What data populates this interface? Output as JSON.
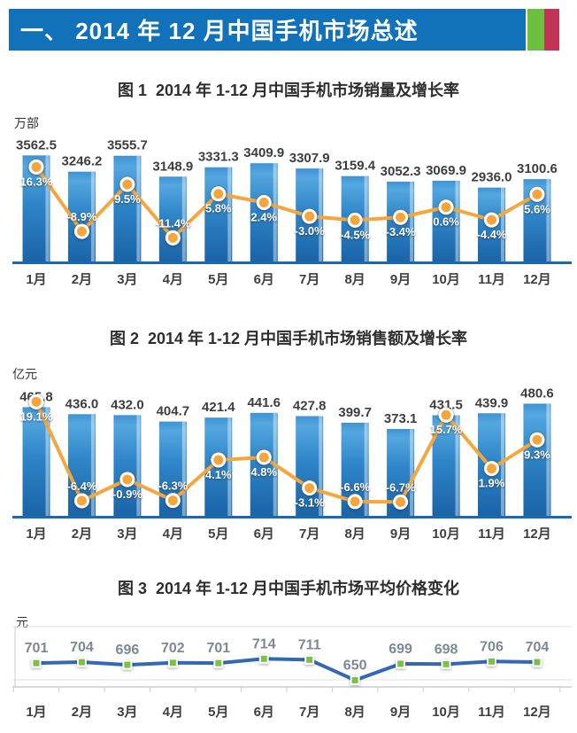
{
  "header": {
    "title": "一、 2014 年 12 月中国手机市场总述",
    "accents": {
      "banner_blue": "#1272B9",
      "green_block": "#6CBF3F",
      "red_block": "#C23457"
    }
  },
  "chart_data": [
    {
      "type": "bar+line",
      "title": "图 1  2014 年 1-12 月中国手机市场销量及增长率",
      "unit_label": "万部",
      "categories": [
        "1月",
        "2月",
        "3月",
        "4月",
        "5月",
        "6月",
        "7月",
        "8月",
        "9月",
        "10月",
        "11月",
        "12月"
      ],
      "bars": {
        "values": [
          3562.5,
          3246.2,
          3555.7,
          3148.9,
          3331.3,
          3409.9,
          3307.9,
          3159.4,
          3052.3,
          3069.9,
          2936.0,
          3100.6
        ]
      },
      "line": {
        "values_pct": [
          16.3,
          -8.9,
          9.5,
          -11.4,
          5.8,
          2.4,
          -3.0,
          -4.5,
          -3.4,
          0.6,
          -4.4,
          5.6
        ]
      },
      "ylim_bars": [
        1480,
        3620
      ],
      "ylim_pct": [
        -21,
        22
      ],
      "colors": {
        "bar_top": "#4BA0DB",
        "bar_bottom": "#1A63A6",
        "line": "#F3A73C",
        "axis": "#1A6AB2"
      },
      "legend": "none",
      "grid": "off"
    },
    {
      "type": "bar+line",
      "title": "图 2  2014 年 1-12 月中国手机市场销售额及增长率",
      "unit_label": "亿元",
      "categories": [
        "1月",
        "2月",
        "3月",
        "4月",
        "5月",
        "6月",
        "7月",
        "8月",
        "9月",
        "10月",
        "11月",
        "12月"
      ],
      "bars": {
        "values": [
          465.8,
          436.0,
          432.0,
          404.7,
          421.4,
          441.6,
          427.8,
          399.7,
          373.1,
          431.5,
          439.9,
          480.6
        ]
      },
      "line": {
        "values_pct": [
          19.1,
          -6.4,
          -0.9,
          -6.3,
          4.1,
          4.8,
          -3.1,
          -6.6,
          -6.7,
          15.7,
          1.9,
          9.3
        ]
      },
      "ylim_bars": [
        0,
        520
      ],
      "ylim_pct": [
        -10.5,
        21
      ],
      "colors": {
        "bar_top": "#4BA0DB",
        "bar_bottom": "#1A63A6",
        "line": "#F3A73C",
        "axis": "#1A6AB2"
      },
      "legend": "none",
      "grid": "off"
    },
    {
      "type": "line",
      "title": "图 3  2014 年 1-12 月中国手机市场平均价格变化",
      "unit_label": "元",
      "categories": [
        "1月",
        "2月",
        "3月",
        "4月",
        "5月",
        "6月",
        "7月",
        "8月",
        "9月",
        "10月",
        "11月",
        "12月"
      ],
      "line": {
        "values": [
          701,
          704,
          696,
          702,
          701,
          714,
          711,
          650,
          699,
          698,
          706,
          704
        ]
      },
      "ylim": [
        630,
        810
      ],
      "colors": {
        "line": "#3468B3",
        "marker": "#7CC143",
        "grid": "#DDE1E4",
        "axis": "#C9CED3"
      },
      "legend": "none",
      "grid": "on"
    }
  ]
}
